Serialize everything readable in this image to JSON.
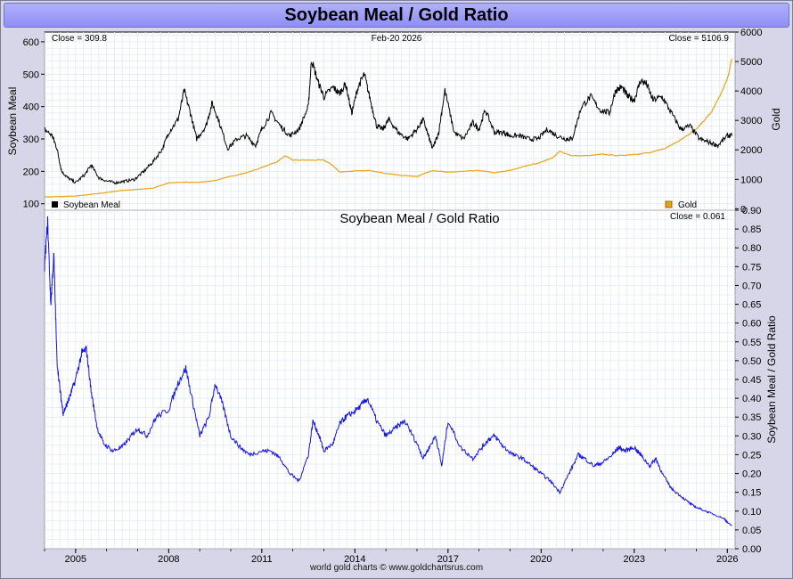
{
  "page": {
    "title": "Soybean Meal / Gold Ratio",
    "footer": "world gold charts © www.goldchartsrus.com"
  },
  "colors": {
    "frame_bg": "#d6d6e8",
    "title_bg": "#9b9bf5",
    "grid": "#dfe8f2",
    "soy": "#000000",
    "gold": "#e8a317",
    "ratio": "#1414e6"
  },
  "chart_data": [
    {
      "type": "line",
      "title": "",
      "top_left_label": "Close = 309.8",
      "top_center_label": "Feb-20  2026",
      "top_right_label": "Close = 5106.9",
      "ylabel_left": "Soybean Meal",
      "ylabel_right": "Gold",
      "ylim_left": [
        80,
        630
      ],
      "ylim_right": [
        -50,
        6000
      ],
      "xlim": [
        2004.0,
        2026.25
      ],
      "yticks_left": [
        "100",
        "200",
        "300",
        "400",
        "500",
        "600"
      ],
      "yticks_right": [
        "0",
        "1000",
        "2000",
        "3000",
        "4000",
        "5000",
        "6000"
      ],
      "legend": {
        "left": "Soybean Meal",
        "right": "Gold",
        "placement": "bottom"
      },
      "series": [
        {
          "name": "Soybean Meal",
          "axis": "left",
          "x": [
            2004.0,
            2004.25,
            2004.4,
            2004.55,
            2004.75,
            2005.0,
            2005.3,
            2005.5,
            2005.75,
            2006.0,
            2006.3,
            2006.6,
            2006.9,
            2007.2,
            2007.5,
            2007.8,
            2008.0,
            2008.3,
            2008.5,
            2008.7,
            2008.9,
            2009.2,
            2009.4,
            2009.6,
            2009.9,
            2010.2,
            2010.5,
            2010.8,
            2011.0,
            2011.3,
            2011.6,
            2011.9,
            2012.2,
            2012.5,
            2012.6,
            2012.8,
            2013.0,
            2013.3,
            2013.5,
            2013.7,
            2013.9,
            2014.1,
            2014.3,
            2014.5,
            2014.7,
            2014.9,
            2015.1,
            2015.4,
            2015.7,
            2016.0,
            2016.2,
            2016.4,
            2016.5,
            2016.7,
            2016.9,
            2017.2,
            2017.5,
            2017.8,
            2018.0,
            2018.2,
            2018.5,
            2018.8,
            2019.0,
            2019.3,
            2019.6,
            2019.9,
            2020.2,
            2020.5,
            2020.8,
            2021.0,
            2021.3,
            2021.6,
            2021.9,
            2022.2,
            2022.4,
            2022.6,
            2022.8,
            2023.0,
            2023.2,
            2023.4,
            2023.6,
            2023.9,
            2024.2,
            2024.5,
            2024.8,
            2025.1,
            2025.4,
            2025.7,
            2026.0,
            2026.15
          ],
          "values": [
            330,
            310,
            270,
            200,
            180,
            165,
            190,
            220,
            180,
            170,
            165,
            170,
            175,
            200,
            230,
            270,
            320,
            360,
            450,
            380,
            300,
            340,
            410,
            360,
            270,
            300,
            310,
            280,
            330,
            380,
            340,
            310,
            330,
            400,
            545,
            480,
            430,
            460,
            440,
            470,
            380,
            460,
            500,
            420,
            340,
            330,
            360,
            320,
            300,
            330,
            360,
            300,
            270,
            320,
            450,
            320,
            300,
            350,
            330,
            390,
            320,
            320,
            310,
            310,
            300,
            300,
            330,
            310,
            300,
            300,
            400,
            430,
            390,
            380,
            450,
            460,
            430,
            420,
            480,
            470,
            420,
            430,
            380,
            330,
            340,
            300,
            290,
            280,
            310,
            310
          ],
          "color": "#000000"
        },
        {
          "name": "Gold",
          "axis": "right",
          "x": [
            2004.0,
            2005.0,
            2006.0,
            2006.5,
            2007.0,
            2007.5,
            2008.0,
            2008.5,
            2009.0,
            2009.5,
            2010.0,
            2010.5,
            2011.0,
            2011.5,
            2011.75,
            2012.0,
            2012.5,
            2013.0,
            2013.25,
            2013.5,
            2014.0,
            2014.5,
            2015.0,
            2015.5,
            2016.0,
            2016.5,
            2017.0,
            2017.5,
            2018.0,
            2018.5,
            2019.0,
            2019.5,
            2020.0,
            2020.4,
            2020.6,
            2021.0,
            2021.5,
            2022.0,
            2022.5,
            2023.0,
            2023.5,
            2024.0,
            2024.5,
            2025.0,
            2025.25,
            2025.5,
            2025.75,
            2026.0,
            2026.15
          ],
          "values": [
            400,
            430,
            550,
            620,
            660,
            700,
            880,
            900,
            900,
            960,
            1100,
            1220,
            1400,
            1600,
            1800,
            1650,
            1650,
            1650,
            1500,
            1250,
            1280,
            1300,
            1200,
            1130,
            1100,
            1300,
            1240,
            1270,
            1300,
            1220,
            1300,
            1450,
            1580,
            1750,
            1950,
            1800,
            1800,
            1850,
            1800,
            1850,
            1900,
            2050,
            2350,
            2700,
            3000,
            3300,
            3800,
            4400,
            5100
          ],
          "color": "#e8a317"
        }
      ]
    },
    {
      "type": "line",
      "title": "Soybean Meal  /  Gold Ratio",
      "top_right_label": "Close = 0.061",
      "ylabel_right": "Soybean Meal / Gold Ratio",
      "ylim": [
        0.0,
        0.9
      ],
      "xlim": [
        2004.0,
        2026.25
      ],
      "yticks": [
        "0.00",
        "0.05",
        "0.10",
        "0.15",
        "0.20",
        "0.25",
        "0.30",
        "0.35",
        "0.40",
        "0.45",
        "0.50",
        "0.55",
        "0.60",
        "0.65",
        "0.70",
        "0.75",
        "0.80",
        "0.85",
        "0.90"
      ],
      "xticks": [
        "2005",
        "2008",
        "2011",
        "2014",
        "2017",
        "2020",
        "2023",
        "2026"
      ],
      "series": [
        {
          "name": "Soybean Meal / Gold Ratio",
          "x": [
            2004.0,
            2004.1,
            2004.2,
            2004.3,
            2004.4,
            2004.5,
            2004.6,
            2004.7,
            2004.8,
            2005.0,
            2005.2,
            2005.35,
            2005.5,
            2005.7,
            2005.9,
            2006.2,
            2006.5,
            2006.8,
            2007.0,
            2007.3,
            2007.6,
            2008.0,
            2008.3,
            2008.55,
            2008.8,
            2009.0,
            2009.3,
            2009.5,
            2009.75,
            2010.0,
            2010.3,
            2010.6,
            2011.0,
            2011.3,
            2011.6,
            2011.9,
            2012.2,
            2012.5,
            2012.65,
            2012.85,
            2013.0,
            2013.3,
            2013.5,
            2013.7,
            2013.9,
            2014.2,
            2014.4,
            2014.7,
            2015.0,
            2015.3,
            2015.6,
            2016.0,
            2016.2,
            2016.4,
            2016.6,
            2016.8,
            2017.0,
            2017.4,
            2017.8,
            2018.1,
            2018.3,
            2018.5,
            2018.8,
            2019.1,
            2019.4,
            2019.7,
            2020.0,
            2020.3,
            2020.6,
            2020.9,
            2021.2,
            2021.4,
            2021.7,
            2022.0,
            2022.3,
            2022.5,
            2022.7,
            2023.0,
            2023.2,
            2023.5,
            2023.7,
            2023.9,
            2024.2,
            2024.5,
            2024.8,
            2025.0,
            2025.3,
            2025.6,
            2025.9,
            2026.0,
            2026.15
          ],
          "values": [
            0.75,
            0.87,
            0.65,
            0.78,
            0.5,
            0.42,
            0.36,
            0.38,
            0.4,
            0.45,
            0.52,
            0.53,
            0.42,
            0.32,
            0.28,
            0.26,
            0.27,
            0.3,
            0.32,
            0.3,
            0.35,
            0.37,
            0.44,
            0.48,
            0.38,
            0.3,
            0.35,
            0.44,
            0.38,
            0.3,
            0.27,
            0.25,
            0.26,
            0.26,
            0.24,
            0.2,
            0.18,
            0.25,
            0.34,
            0.3,
            0.26,
            0.28,
            0.33,
            0.35,
            0.36,
            0.38,
            0.4,
            0.34,
            0.3,
            0.32,
            0.34,
            0.28,
            0.24,
            0.27,
            0.3,
            0.22,
            0.34,
            0.27,
            0.24,
            0.27,
            0.29,
            0.3,
            0.27,
            0.25,
            0.24,
            0.22,
            0.2,
            0.18,
            0.15,
            0.2,
            0.25,
            0.24,
            0.22,
            0.23,
            0.25,
            0.27,
            0.26,
            0.27,
            0.25,
            0.22,
            0.24,
            0.2,
            0.16,
            0.14,
            0.12,
            0.11,
            0.1,
            0.09,
            0.08,
            0.07,
            0.061
          ],
          "color": "#1414e6"
        }
      ]
    }
  ]
}
